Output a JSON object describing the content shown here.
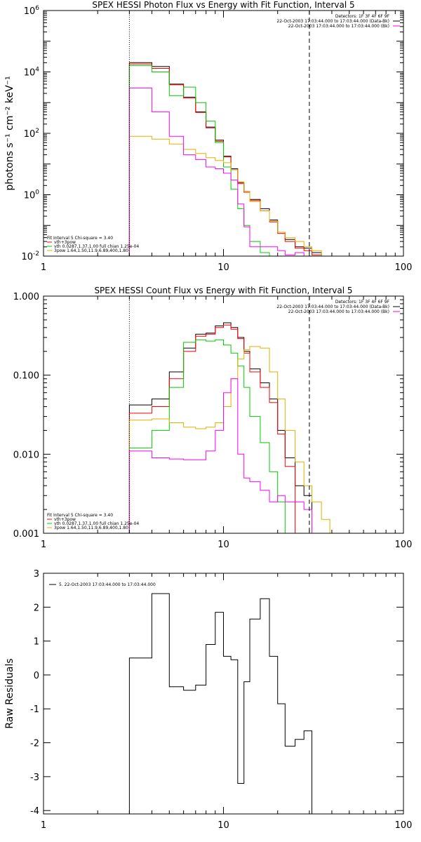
{
  "chart_data": [
    {
      "type": "line",
      "title": "SPEX HESSI Photon Flux vs Energy with Fit Function, Interval 5",
      "xlabel": "",
      "ylabel": "photons s⁻¹ cm⁻² keV⁻¹",
      "xscale": "log",
      "yscale": "log",
      "xlim": [
        1,
        100
      ],
      "ylim": [
        0.01,
        1000000
      ],
      "x_ticks": [
        {
          "v": 1,
          "label": "1"
        },
        {
          "v": 10,
          "label": "10"
        },
        {
          "v": 100,
          "label": "100"
        }
      ],
      "y_ticks": [
        {
          "v": 0.01,
          "base": "10",
          "exp": "-2"
        },
        {
          "v": 1,
          "base": "10",
          "exp": "0"
        },
        {
          "v": 100,
          "base": "10",
          "exp": "2"
        },
        {
          "v": 10000,
          "base": "10",
          "exp": "4"
        },
        {
          "v": 1000000,
          "base": "10",
          "exp": "6"
        }
      ],
      "vlines": [
        {
          "x": 3,
          "style": "dotted"
        },
        {
          "x": 30,
          "style": "dashed"
        }
      ],
      "legend_tr": [
        "Detectors: 1F 3F 4F 6F 9F",
        "22-Oct-2003 17:03:44.000 to 17:03:44.000 (Data-Bk)",
        "22-Oct-2003 17:03:44.000 to 17:03:44.000 (Bk)"
      ],
      "legend_tr_colors": [
        "",
        "#000000",
        "#ff00ff"
      ],
      "legend_bl": [
        "Fit Interval 5   Chi-square = 3.40",
        "vth+3pow",
        "vth 0.0287,1.37,1.00  full chian 1.25e-04",
        "3pow 1.64,1.50,11.9,6.89,400,1.80"
      ],
      "legend_bl_colors": [
        "",
        "#ff0000",
        "#00cc00",
        "#e0b000"
      ],
      "edges": [
        3,
        4,
        5,
        6,
        7,
        8,
        9,
        10,
        11,
        12,
        13,
        14,
        16,
        18,
        20,
        22,
        25,
        28,
        31,
        35,
        39
      ],
      "series": [
        {
          "color": "#000000",
          "values": [
            20000,
            15000,
            4000,
            1500,
            500,
            160,
            60,
            18,
            7,
            2.5,
            1.3,
            0.7,
            0.35,
            0.15,
            0.06,
            0.035,
            0.02,
            0.018,
            0.013,
            null,
            null
          ]
        },
        {
          "color": "#ff0000",
          "values": [
            18000,
            13000,
            3800,
            1400,
            480,
            150,
            55,
            17,
            6.5,
            2.3,
            1.2,
            0.65,
            0.3,
            0.13,
            0.055,
            0.03,
            0.018,
            0.015,
            0.011,
            null,
            null
          ]
        },
        {
          "color": "#00cc00",
          "values": [
            16000,
            10000,
            1700,
            3200,
            1000,
            250,
            50,
            8,
            1.5,
            0.35,
            0.1,
            0.03,
            0.013,
            0.01,
            null,
            null,
            null,
            null,
            null,
            null,
            null
          ]
        },
        {
          "color": "#e0b000",
          "values": [
            80,
            65,
            45,
            30,
            22,
            16,
            13,
            11,
            6.5,
            2.6,
            1.3,
            0.6,
            0.3,
            0.14,
            0.06,
            0.04,
            0.03,
            0.02,
            0.015,
            0.01,
            null
          ]
        },
        {
          "color": "#ff00ff",
          "values": [
            3000,
            500,
            80,
            20,
            14,
            8,
            7,
            5,
            3,
            0.5,
            0.09,
            0.02,
            0.02,
            0.02,
            0.015,
            0.011,
            0.013,
            0.01,
            null,
            null,
            null
          ]
        }
      ]
    },
    {
      "type": "line",
      "title": "SPEX HESSI Count Flux vs Energy with Fit Function, Interval 5",
      "xlabel": "",
      "ylabel": "",
      "xscale": "log",
      "yscale": "log",
      "xlim": [
        1,
        100
      ],
      "ylim": [
        0.001,
        1.0
      ],
      "x_ticks": [
        {
          "v": 1,
          "label": "1"
        },
        {
          "v": 10,
          "label": "10"
        },
        {
          "v": 100,
          "label": "100"
        }
      ],
      "y_ticks": [
        {
          "v": 0.001,
          "label": "0.001"
        },
        {
          "v": 0.01,
          "label": "0.010"
        },
        {
          "v": 0.1,
          "label": "0.100"
        },
        {
          "v": 1.0,
          "label": "1.000"
        }
      ],
      "vlines": [
        {
          "x": 3,
          "style": "dotted"
        },
        {
          "x": 30,
          "style": "dashed"
        }
      ],
      "legend_tr": [
        "Detectors: 1F 3F 4F 6F 9F",
        "22-Oct-2003 17:03:44.000 to 17:03:44.000 (Data-Bk)",
        "22-Oct-2003 17:03:44.000 to 17:03:44.000 (Bk)"
      ],
      "legend_tr_colors": [
        "",
        "#000000",
        "#ff00ff"
      ],
      "legend_bl": [
        "Fit Interval 5   Chi-square = 3.40",
        "vth+3pow",
        "vth 0.0287,1.37,1.00  full chian 1.25e-04",
        "3pow 1.64,1.50,11.9,6.89,400,1.80"
      ],
      "legend_bl_colors": [
        "",
        "#ff0000",
        "#00cc00",
        "#e0b000"
      ],
      "edges": [
        3,
        4,
        5,
        6,
        7,
        8,
        9,
        10,
        11,
        12,
        13,
        14,
        16,
        18,
        20,
        22,
        25,
        28,
        31,
        35,
        39
      ],
      "series": [
        {
          "color": "#000000",
          "values": [
            0.042,
            0.05,
            0.11,
            0.22,
            0.33,
            0.34,
            0.42,
            0.46,
            0.4,
            0.3,
            0.2,
            0.12,
            0.08,
            0.05,
            0.02,
            0.009,
            0.004,
            0.003,
            null,
            null,
            null
          ]
        },
        {
          "color": "#ff0000",
          "values": [
            0.033,
            0.04,
            0.09,
            0.2,
            0.31,
            0.33,
            0.4,
            0.43,
            0.38,
            0.29,
            0.19,
            0.11,
            0.07,
            0.045,
            0.018,
            0.007,
            null,
            null,
            null,
            null,
            null
          ]
        },
        {
          "color": "#00cc00",
          "values": [
            0.012,
            0.02,
            0.07,
            0.26,
            0.28,
            0.27,
            0.28,
            0.24,
            0.19,
            0.13,
            0.07,
            0.03,
            0.014,
            0.006,
            0.0025,
            0.001,
            null,
            null,
            null,
            null,
            null
          ]
        },
        {
          "color": "#e0b000",
          "values": [
            0.027,
            0.028,
            0.025,
            0.022,
            0.021,
            0.022,
            0.025,
            0.04,
            0.09,
            0.16,
            0.21,
            0.23,
            0.22,
            0.11,
            0.05,
            0.02,
            0.008,
            0.004,
            0.0025,
            0.0015,
            null
          ]
        },
        {
          "color": "#ff00ff",
          "values": [
            0.011,
            0.009,
            0.0087,
            0.0085,
            0.0085,
            0.011,
            0.02,
            0.06,
            0.09,
            0.01,
            0.005,
            0.0045,
            0.0035,
            0.0025,
            0.003,
            0.0025,
            0.0025,
            0.002,
            null,
            null,
            null
          ]
        }
      ]
    },
    {
      "type": "line",
      "title": "",
      "xlabel": "",
      "ylabel": "Raw Residuals",
      "xscale": "log",
      "yscale": "linear",
      "xlim": [
        1,
        100
      ],
      "ylim": [
        -4.1,
        3.0
      ],
      "x_ticks": [
        {
          "v": 1,
          "label": "1"
        },
        {
          "v": 10,
          "label": "10"
        },
        {
          "v": 100,
          "label": "100"
        }
      ],
      "y_ticks": [
        {
          "v": 3,
          "label": "3"
        },
        {
          "v": 2,
          "label": "2"
        },
        {
          "v": 1,
          "label": "1"
        },
        {
          "v": 0,
          "label": "0"
        },
        {
          "v": -1,
          "label": "-1"
        },
        {
          "v": -2,
          "label": "-2"
        },
        {
          "v": -3,
          "label": "-3"
        },
        {
          "v": -4,
          "label": "-4"
        }
      ],
      "vlines": [],
      "legend_tl": "5. 22-Oct-2003 17:03:44.000 to 17:03:44.000",
      "edges": [
        3,
        4,
        5,
        6,
        7,
        8,
        9,
        10,
        11,
        12,
        13,
        14,
        16,
        18,
        20,
        22,
        25,
        28,
        31
      ],
      "series": [
        {
          "color": "#000000",
          "values": [
            0.5,
            2.4,
            -0.35,
            -0.45,
            -0.3,
            0.9,
            1.85,
            0.55,
            0.45,
            -3.2,
            -0.2,
            1.65,
            2.25,
            0.55,
            -0.85,
            -2.1,
            -1.9,
            -1.65
          ]
        }
      ]
    }
  ]
}
